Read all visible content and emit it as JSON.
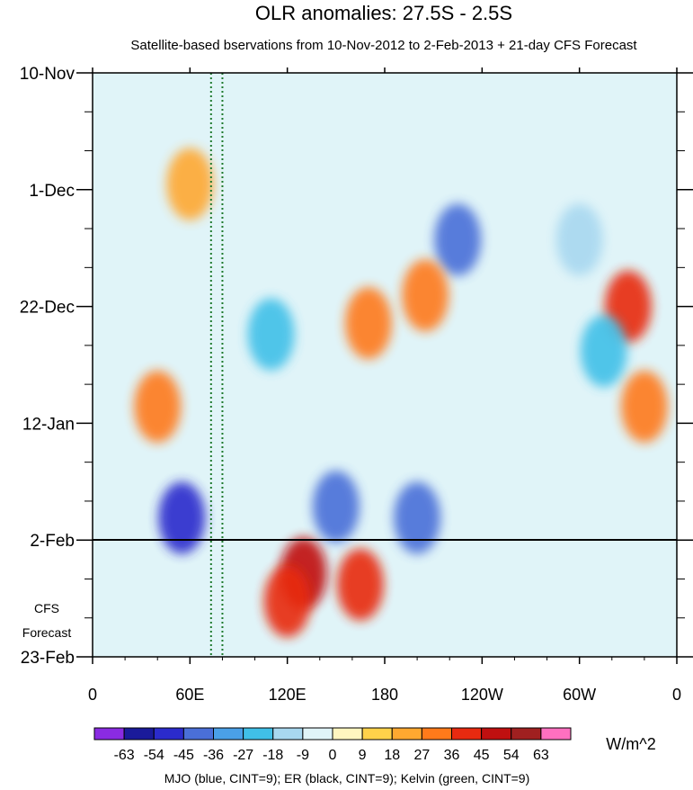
{
  "chart_data": {
    "type": "heatmap",
    "title": "OLR anomalies: 27.5S - 2.5S",
    "subtitle": "Satellite-based bservations from 10-Nov-2012 to 2-Feb-2013 + 21-day CFS Forecast",
    "x_ticks": [
      "0",
      "60E",
      "120E",
      "180",
      "120W",
      "60W",
      "0"
    ],
    "x_range_deg_east": [
      0,
      360
    ],
    "y_ticks": [
      "10-Nov",
      "1-Dec",
      "22-Dec",
      "12-Jan",
      "2-Feb",
      "23-Feb"
    ],
    "y_range_days_from_10nov": [
      0,
      105
    ],
    "forecast_start_line": "2-Feb",
    "forecast_label": [
      "CFS",
      "Forecast"
    ],
    "colorbar": {
      "labels": [
        "-63",
        "-54",
        "-45",
        "-36",
        "-27",
        "-18",
        "-9",
        "0",
        "9",
        "18",
        "27",
        "36",
        "45",
        "54",
        "63"
      ],
      "colors": [
        "#8a2be2",
        "#1a1a9a",
        "#2b2bcc",
        "#4a6fd8",
        "#4aa0e8",
        "#40c0e8",
        "#a8d8f0",
        "#e0f4f8",
        "#fff6c0",
        "#ffd24a",
        "#ffa830",
        "#ff7a1a",
        "#e82a10",
        "#c01010",
        "#a02020",
        "#ff70c0"
      ],
      "units": "W/m^2"
    },
    "footer": "MJO (blue, CINT=9); ER (black, CINT=9); Kelvin (green, CINT=9)",
    "reference_lines_lon_deg": [
      73,
      80
    ],
    "contour_colors": {
      "mjo": "#1a1acc",
      "er": "#000000",
      "kelvin": "#33dd33"
    },
    "anomaly_features": [
      {
        "lon": 130,
        "day": 90,
        "value": 45
      },
      {
        "lon": 120,
        "day": 95,
        "value": 36
      },
      {
        "lon": 165,
        "day": 92,
        "value": 40
      },
      {
        "lon": 150,
        "day": 78,
        "value": -45
      },
      {
        "lon": 200,
        "day": 80,
        "value": -40
      },
      {
        "lon": 225,
        "day": 30,
        "value": -45
      },
      {
        "lon": 55,
        "day": 80,
        "value": -54
      },
      {
        "lon": 330,
        "day": 42,
        "value": 40
      },
      {
        "lon": 315,
        "day": 50,
        "value": -27
      },
      {
        "lon": 340,
        "day": 60,
        "value": 27
      },
      {
        "lon": 110,
        "day": 47,
        "value": -27
      },
      {
        "lon": 40,
        "day": 60,
        "value": 27
      },
      {
        "lon": 170,
        "day": 45,
        "value": 27
      },
      {
        "lon": 205,
        "day": 40,
        "value": 27
      },
      {
        "lon": 60,
        "day": 20,
        "value": 18
      },
      {
        "lon": 300,
        "day": 30,
        "value": -18
      }
    ]
  }
}
